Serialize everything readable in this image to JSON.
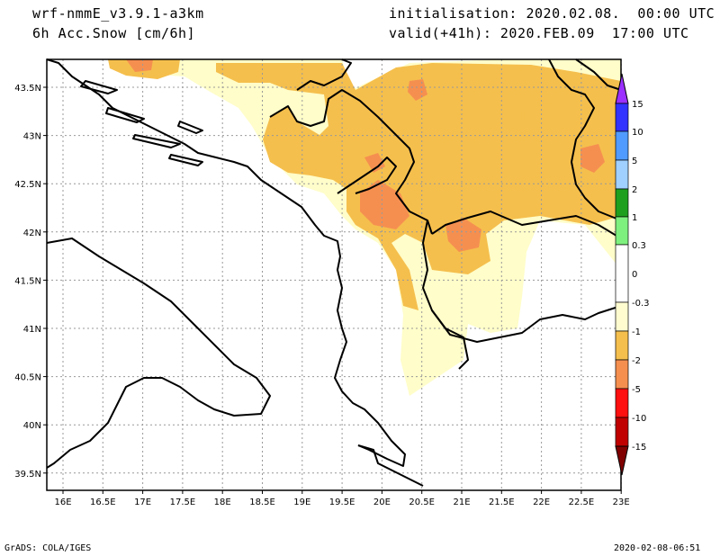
{
  "header": {
    "model": "wrf-nmmE_v3.9.1-a3km",
    "field": "6h Acc.Snow [cm/6h]",
    "init": "initialisation: 2020.02.08.  00:00 UTC",
    "valid": "valid(+41h): 2020.FEB.09  17:00 UTC"
  },
  "footer": {
    "left": "GrADS: COLA/IGES",
    "right": "2020-02-08-06:51"
  },
  "axes": {
    "lat_labels": [
      "43.5N",
      "43N",
      "42.5N",
      "42N",
      "41.5N",
      "41N",
      "40.5N",
      "40N",
      "39.5N"
    ],
    "lon_labels": [
      "16E",
      "16.5E",
      "17E",
      "17.5E",
      "18E",
      "18.5E",
      "19E",
      "19.5E",
      "20E",
      "20.5E",
      "21E",
      "21.5E",
      "22E",
      "22.5E",
      "23E"
    ]
  },
  "legend": {
    "labels": [
      "15",
      "10",
      "5",
      "2",
      "1",
      "0.3",
      "0",
      "-0.3",
      "-1",
      "-2",
      "-5",
      "-10",
      "-15"
    ],
    "colors": {
      "purple": "#9b30ff",
      "blue_dark": "#3333ff",
      "blue_mid": "#4f9bff",
      "blue_light": "#a0d0ff",
      "green_dark": "#1ea01e",
      "green_light": "#7ef07e",
      "white": "#ffffff",
      "pale_yellow": "#fffdd0",
      "yellow_orange": "#f5bf4d",
      "orange": "#f58f50",
      "red": "#ff1010",
      "dark_red": "#c00000",
      "maroon": "#800000"
    }
  },
  "colors": {
    "snow_light": "#fffdc9",
    "snow_mid": "#f5bf4d",
    "snow_heavy": "#f58f50",
    "grid": "#999999",
    "border": "#000000"
  }
}
